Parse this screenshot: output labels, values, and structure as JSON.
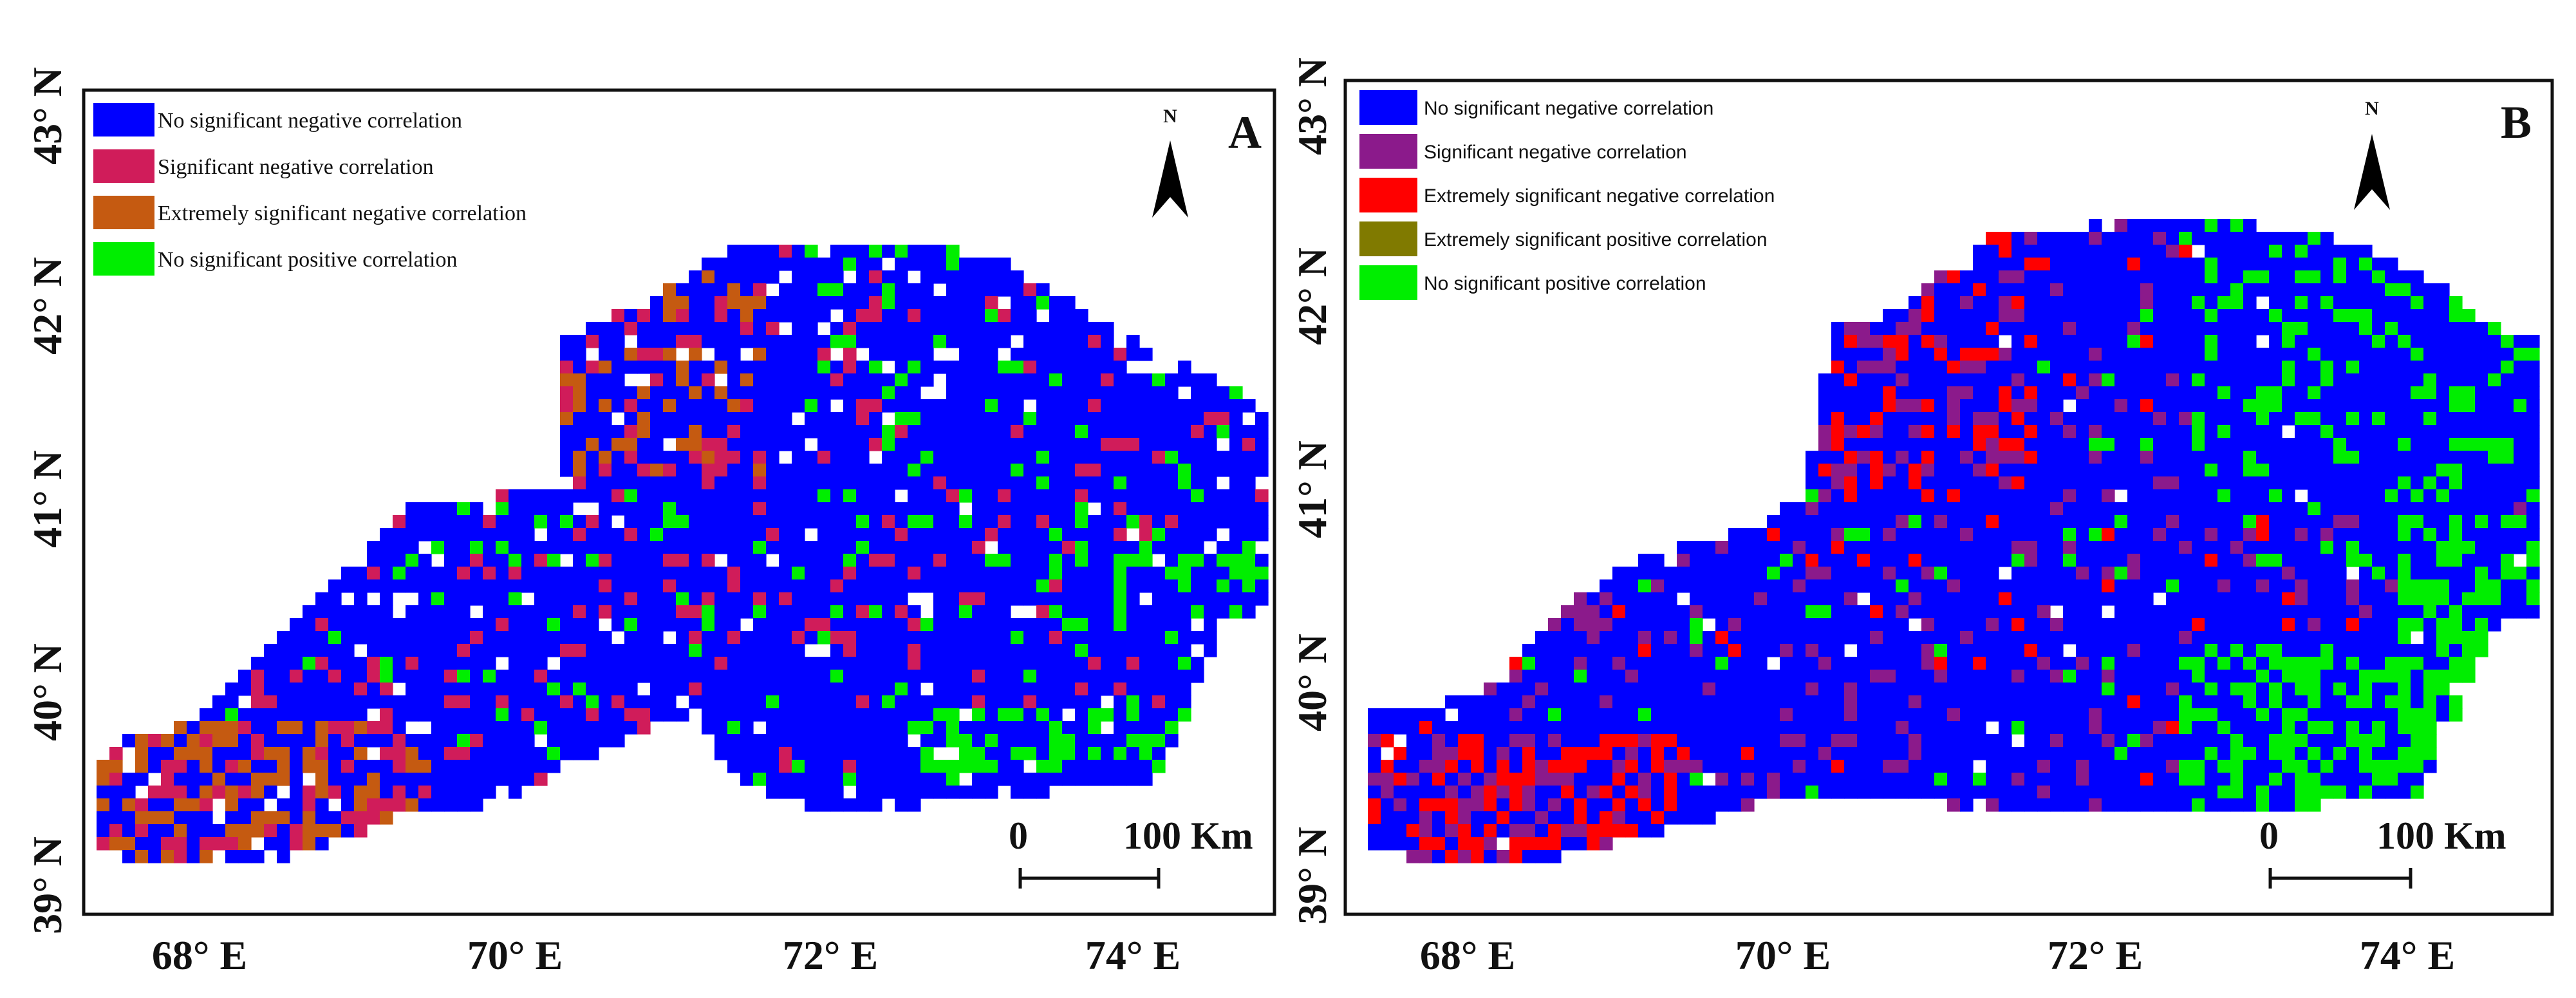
{
  "panels": [
    {
      "id": "A",
      "letter": "A",
      "lat_labels": [
        "43° N",
        "42° N",
        "41° N",
        "40° N",
        "39° N"
      ],
      "lon_labels": [
        "68° E",
        "70° E",
        "72° E",
        "74° E"
      ],
      "north_label": "N",
      "scale_zero": "0",
      "scale_text": "100 Km",
      "legend": [
        {
          "label": "No  significant negative correlation",
          "color": "#0000ff"
        },
        {
          "label": " Significant negative correlation",
          "color": "#d01c5a"
        },
        {
          "label": "Extremely  significant negative  correlation",
          "color": "#c55a11"
        },
        {
          "label": "No  significant positive correlation",
          "color": "#00ee00"
        }
      ]
    },
    {
      "id": "B",
      "letter": "B",
      "lat_labels": [
        "43° N",
        "42° N",
        "41° N",
        "40° N",
        "39° N"
      ],
      "lon_labels": [
        "68° E",
        "70° E",
        "72° E",
        "74° E"
      ],
      "north_label": "N",
      "scale_zero": "0",
      "scale_text": "100 Km",
      "legend": [
        {
          "label": "No  significant negative correlation",
          "color": "#0000ff"
        },
        {
          "label": " Significant negative correlation",
          "color": "#8b1a8b"
        },
        {
          "label": "Extremely  significant negative  correlation",
          "color": "#ff0000"
        },
        {
          "label": "Extremely  significant positive correlation",
          "color": "#807a00"
        },
        {
          "label": "No  significant positive correlation",
          "color": "#00ee00"
        }
      ]
    }
  ]
}
